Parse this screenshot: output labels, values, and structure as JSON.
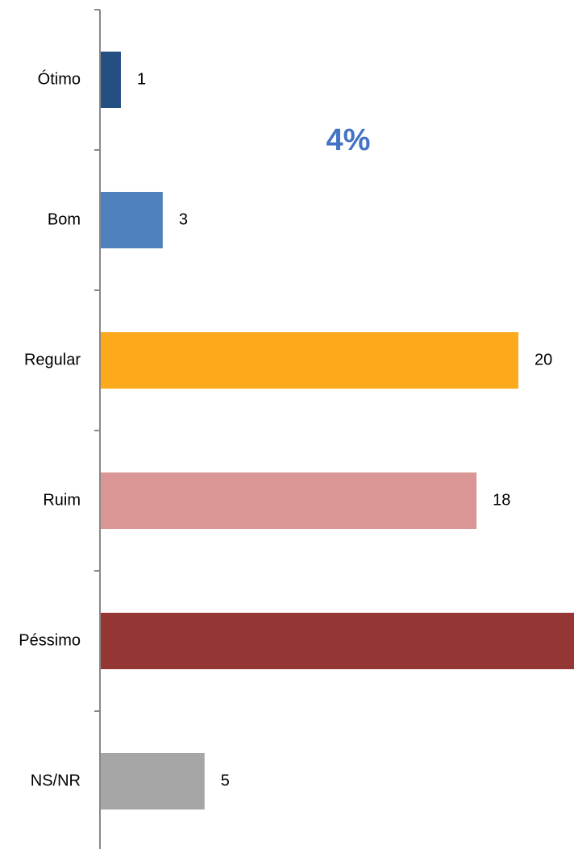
{
  "chart_data": {
    "type": "barh",
    "annotation": "4%",
    "categories": [
      "Ótimo",
      "Bom",
      "Regular",
      "Ruim",
      "Péssimo",
      "NS/NR"
    ],
    "values": [
      1,
      3,
      20,
      18,
      23,
      5
    ],
    "value_labels": [
      "1",
      "3",
      "20",
      "18",
      null,
      "5"
    ],
    "colors": [
      "#254e83",
      "#4f81bd",
      "#fcaa1c",
      "#d99694",
      "#943634",
      "#a6a6a6"
    ]
  }
}
